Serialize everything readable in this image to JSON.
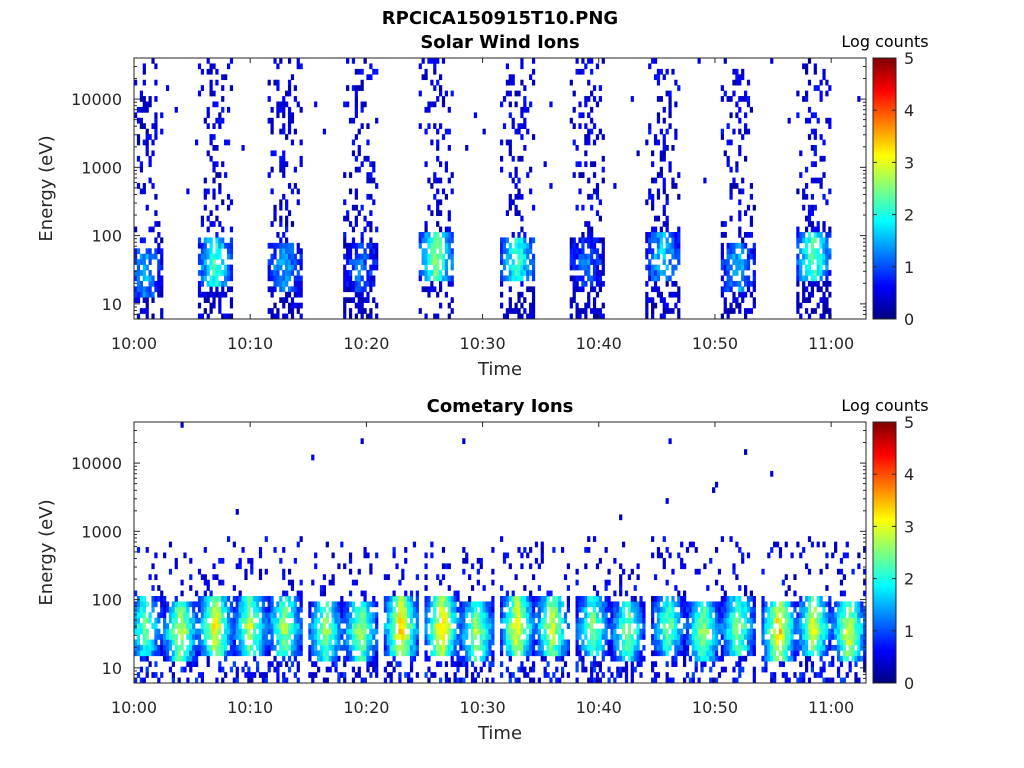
{
  "figure": {
    "title": "RPCICA150915T10.PNG"
  },
  "colormap": [
    "#00007f",
    "#0000ff",
    "#007fff",
    "#00ffff",
    "#7fff7f",
    "#ffff00",
    "#ff7f00",
    "#ff0000",
    "#7f0000"
  ],
  "chart_data": [
    {
      "type": "heatmap",
      "title": "Solar Wind Ions",
      "xlabel": "Time",
      "ylabel": "Energy (eV)",
      "xlim": [
        "10:00",
        "11:03"
      ],
      "xticks": [
        "10:00",
        "10:10",
        "10:20",
        "10:30",
        "10:40",
        "10:50",
        "11:00"
      ],
      "yscale": "log",
      "ylim": [
        6,
        40000
      ],
      "yticks": [
        "10",
        "100",
        "1000",
        "10000"
      ],
      "colorbar": {
        "label": "Log counts",
        "range": [
          0,
          5
        ],
        "ticks": [
          "0",
          "1",
          "2",
          "3",
          "4",
          "5"
        ]
      },
      "bursts": [
        {
          "center_min": 1,
          "low_energy_ev": 30,
          "peak_log_counts": 1.3
        },
        {
          "center_min": 7,
          "low_energy_ev": 40,
          "peak_log_counts": 2.0
        },
        {
          "center_min": 13,
          "low_energy_ev": 35,
          "peak_log_counts": 1.3
        },
        {
          "center_min": 19.5,
          "low_energy_ev": 35,
          "peak_log_counts": 1.0
        },
        {
          "center_min": 26,
          "low_energy_ev": 50,
          "peak_log_counts": 2.4
        },
        {
          "center_min": 33,
          "low_energy_ev": 45,
          "peak_log_counts": 2.0
        },
        {
          "center_min": 39,
          "low_energy_ev": 40,
          "peak_log_counts": 1.0
        },
        {
          "center_min": 45.5,
          "low_energy_ev": 50,
          "peak_log_counts": 1.5
        },
        {
          "center_min": 52,
          "low_energy_ev": 35,
          "peak_log_counts": 1.4
        },
        {
          "center_min": 58.5,
          "low_energy_ev": 50,
          "peak_log_counts": 2.2
        }
      ]
    },
    {
      "type": "heatmap",
      "title": "Cometary Ions",
      "xlabel": "Time",
      "ylabel": "Energy (eV)",
      "xlim": [
        "10:00",
        "11:03"
      ],
      "xticks": [
        "10:00",
        "10:10",
        "10:20",
        "10:30",
        "10:40",
        "10:50",
        "11:00"
      ],
      "yscale": "log",
      "ylim": [
        6,
        40000
      ],
      "yticks": [
        "10",
        "100",
        "1000",
        "10000"
      ],
      "colorbar": {
        "label": "Log counts",
        "range": [
          0,
          5
        ],
        "ticks": [
          "0",
          "1",
          "2",
          "3",
          "4",
          "5"
        ]
      },
      "bursts": [
        {
          "center_min": 1,
          "low_energy_ev": 40,
          "peak_log_counts": 2.3
        },
        {
          "center_min": 4,
          "low_energy_ev": 35,
          "peak_log_counts": 2.8
        },
        {
          "center_min": 7,
          "low_energy_ev": 40,
          "peak_log_counts": 3.0
        },
        {
          "center_min": 10,
          "low_energy_ev": 40,
          "peak_log_counts": 2.7
        },
        {
          "center_min": 13,
          "low_energy_ev": 40,
          "peak_log_counts": 2.6
        },
        {
          "center_min": 16.5,
          "low_energy_ev": 35,
          "peak_log_counts": 2.5
        },
        {
          "center_min": 19.5,
          "low_energy_ev": 35,
          "peak_log_counts": 2.6
        },
        {
          "center_min": 23,
          "low_energy_ev": 40,
          "peak_log_counts": 3.2
        },
        {
          "center_min": 26.5,
          "low_energy_ev": 40,
          "peak_log_counts": 3.2
        },
        {
          "center_min": 29.5,
          "low_energy_ev": 35,
          "peak_log_counts": 2.6
        },
        {
          "center_min": 33,
          "low_energy_ev": 40,
          "peak_log_counts": 3.0
        },
        {
          "center_min": 36,
          "low_energy_ev": 40,
          "peak_log_counts": 2.8
        },
        {
          "center_min": 39.5,
          "low_energy_ev": 40,
          "peak_log_counts": 2.4
        },
        {
          "center_min": 42.5,
          "low_energy_ev": 35,
          "peak_log_counts": 2.4
        },
        {
          "center_min": 46,
          "low_energy_ev": 40,
          "peak_log_counts": 2.3
        },
        {
          "center_min": 49,
          "low_energy_ev": 35,
          "peak_log_counts": 2.6
        },
        {
          "center_min": 52,
          "low_energy_ev": 40,
          "peak_log_counts": 2.5
        },
        {
          "center_min": 55.5,
          "low_energy_ev": 35,
          "peak_log_counts": 3.2
        },
        {
          "center_min": 58.5,
          "low_energy_ev": 40,
          "peak_log_counts": 2.8
        },
        {
          "center_min": 61.5,
          "low_energy_ev": 35,
          "peak_log_counts": 2.8
        }
      ]
    }
  ]
}
